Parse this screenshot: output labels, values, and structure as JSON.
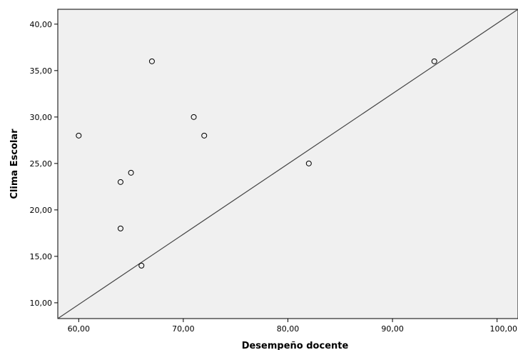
{
  "chart_data": {
    "type": "scatter",
    "title": "",
    "xlabel": "Desempeño docente",
    "ylabel": "Clima Escolar",
    "xlim": [
      58,
      102
    ],
    "ylim": [
      8.3,
      41.6
    ],
    "x_ticks": [
      60,
      70,
      80,
      90,
      100
    ],
    "x_tick_labels": [
      "60,00",
      "70,00",
      "80,00",
      "90,00",
      "100,00"
    ],
    "y_ticks": [
      10,
      15,
      20,
      25,
      30,
      35,
      40
    ],
    "y_tick_labels": [
      "10,00",
      "15,00",
      "20,00",
      "25,00",
      "30,00",
      "35,00",
      "40,00"
    ],
    "grid": false,
    "plot_background": "#f0f0f0",
    "marker_color": "#000000",
    "line_color": "#444444",
    "points": [
      {
        "x": 60,
        "y": 28
      },
      {
        "x": 64,
        "y": 23
      },
      {
        "x": 64,
        "y": 18
      },
      {
        "x": 65,
        "y": 24
      },
      {
        "x": 66,
        "y": 14
      },
      {
        "x": 67,
        "y": 36
      },
      {
        "x": 71,
        "y": 30
      },
      {
        "x": 72,
        "y": 28
      },
      {
        "x": 82,
        "y": 25
      },
      {
        "x": 94,
        "y": 36
      }
    ],
    "reference_line": {
      "x": [
        58,
        102
      ],
      "y": [
        8.3,
        41.6
      ]
    }
  }
}
